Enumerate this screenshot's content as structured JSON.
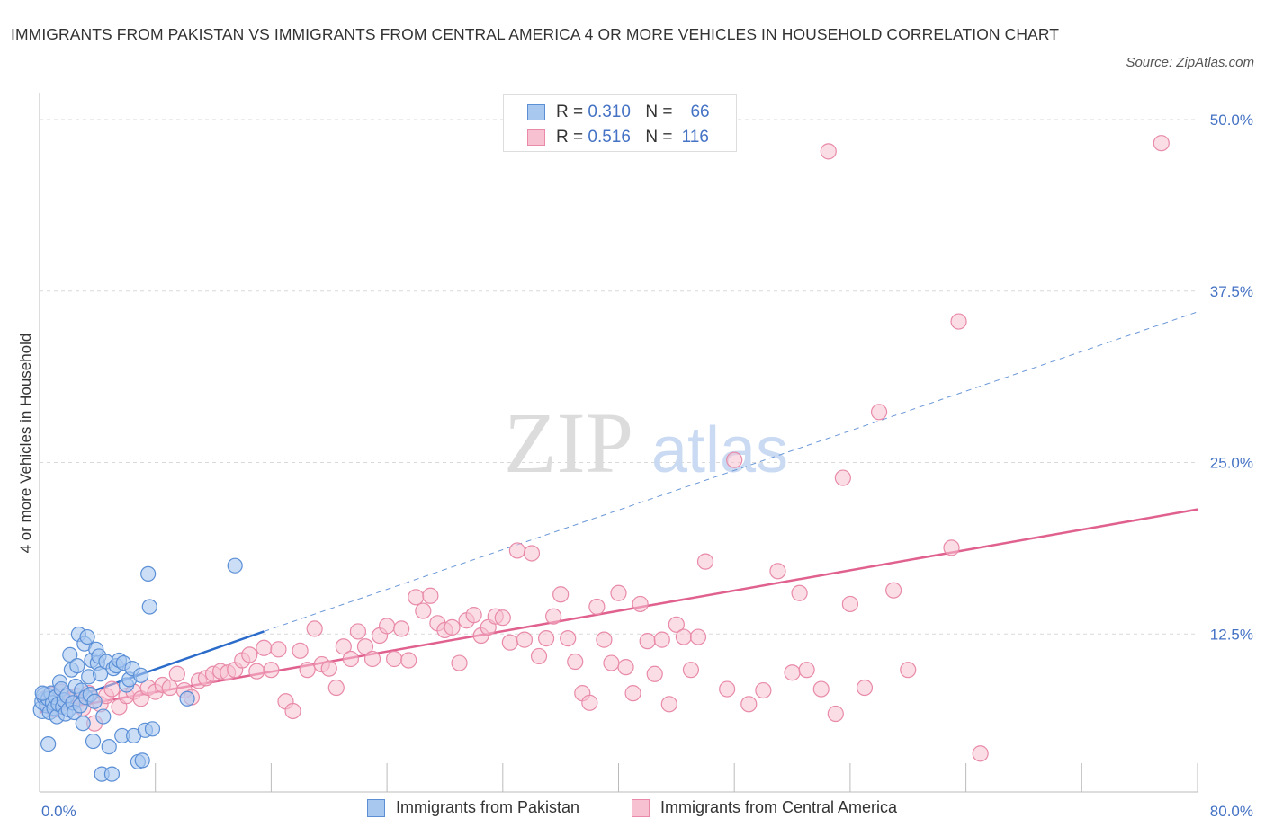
{
  "title": "IMMIGRANTS FROM PAKISTAN VS IMMIGRANTS FROM CENTRAL AMERICA 4 OR MORE VEHICLES IN HOUSEHOLD CORRELATION CHART",
  "source": "Source: ZipAtlas.com",
  "watermark": {
    "zip": "ZIP",
    "atlas": "atlas"
  },
  "legend": {
    "r_label": "R =",
    "n_label": "N =",
    "rows": [
      {
        "r": "0.310",
        "n": "66"
      },
      {
        "r": "0.516",
        "n": "116"
      }
    ]
  },
  "colors": {
    "pakistan_fill": "#a9c8f0",
    "pakistan_stroke": "#5b8fd6",
    "pakistan_line": "#2b6ccb",
    "central_fill": "#f7c1d2",
    "central_stroke": "#e88aa8",
    "central_line": "#e0608e",
    "tick_label": "#4472c4",
    "grid": "#d9d9d9"
  },
  "chart_data": {
    "type": "scatter",
    "title": "IMMIGRANTS FROM PAKISTAN VS IMMIGRANTS FROM CENTRAL AMERICA 4 OR MORE VEHICLES IN HOUSEHOLD CORRELATION CHART",
    "xlabel": "",
    "ylabel": "4 or more Vehicles in Household",
    "xlim": [
      0,
      80
    ],
    "ylim": [
      0,
      50
    ],
    "x_tick_labels": [
      "0.0%",
      "80.0%"
    ],
    "y_ticks": [
      12.5,
      25.0,
      37.5,
      50.0
    ],
    "y_tick_labels": [
      "12.5%",
      "25.0%",
      "37.5%",
      "50.0%"
    ],
    "grid": "horizontal dashed",
    "legend_placement": "top-center",
    "series": [
      {
        "name": "Immigrants from Pakistan",
        "r": 0.31,
        "n": 66,
        "trend": {
          "x1": 0,
          "y1": 6.0,
          "x2": 15.5,
          "y2": 11.7,
          "dashed_to": [
            80,
            35.0
          ]
        },
        "points": [
          [
            0.2,
            6.0
          ],
          [
            0.3,
            6.6
          ],
          [
            0.4,
            7.0
          ],
          [
            0.5,
            6.3
          ],
          [
            0.6,
            6.8
          ],
          [
            0.7,
            5.8
          ],
          [
            0.8,
            7.2
          ],
          [
            0.9,
            6.5
          ],
          [
            1.0,
            6.1
          ],
          [
            1.1,
            6.9
          ],
          [
            1.2,
            5.5
          ],
          [
            1.3,
            6.4
          ],
          [
            1.4,
            8.0
          ],
          [
            1.5,
            7.5
          ],
          [
            1.6,
            6.2
          ],
          [
            1.7,
            6.7
          ],
          [
            1.8,
            5.7
          ],
          [
            1.9,
            7.0
          ],
          [
            2.0,
            6.0
          ],
          [
            2.1,
            10.0
          ],
          [
            2.2,
            8.9
          ],
          [
            2.3,
            6.5
          ],
          [
            2.4,
            5.8
          ],
          [
            2.5,
            7.7
          ],
          [
            2.6,
            9.2
          ],
          [
            2.7,
            11.5
          ],
          [
            2.8,
            6.3
          ],
          [
            2.9,
            7.4
          ],
          [
            3.0,
            5.0
          ],
          [
            3.1,
            10.8
          ],
          [
            3.2,
            6.9
          ],
          [
            3.3,
            11.3
          ],
          [
            3.4,
            8.4
          ],
          [
            3.5,
            7.1
          ],
          [
            3.6,
            9.6
          ],
          [
            3.7,
            3.7
          ],
          [
            3.8,
            6.6
          ],
          [
            3.9,
            10.4
          ],
          [
            4.0,
            9.4
          ],
          [
            4.1,
            9.9
          ],
          [
            4.2,
            8.6
          ],
          [
            4.3,
            1.3
          ],
          [
            4.4,
            5.5
          ],
          [
            4.6,
            9.5
          ],
          [
            4.8,
            3.3
          ],
          [
            5.0,
            1.3
          ],
          [
            5.1,
            9.0
          ],
          [
            5.3,
            9.2
          ],
          [
            5.5,
            9.6
          ],
          [
            5.7,
            4.1
          ],
          [
            5.8,
            9.4
          ],
          [
            6.0,
            7.8
          ],
          [
            6.2,
            8.2
          ],
          [
            6.4,
            9.0
          ],
          [
            6.5,
            4.1
          ],
          [
            6.8,
            2.2
          ],
          [
            7.0,
            8.5
          ],
          [
            7.1,
            2.3
          ],
          [
            7.3,
            4.5
          ],
          [
            7.5,
            15.9
          ],
          [
            7.6,
            13.5
          ],
          [
            7.8,
            4.6
          ],
          [
            0.6,
            3.5
          ],
          [
            0.2,
            7.2
          ],
          [
            10.2,
            6.8
          ],
          [
            13.5,
            16.5
          ]
        ]
      },
      {
        "name": "Immigrants from Central America",
        "r": 0.516,
        "n": 116,
        "trend": {
          "x1": 0,
          "y1": 5.8,
          "x2": 80,
          "y2": 20.6
        },
        "points": [
          [
            0.4,
            6.8
          ],
          [
            0.6,
            6.3
          ],
          [
            0.8,
            7.1
          ],
          [
            1.0,
            6.0
          ],
          [
            1.2,
            6.6
          ],
          [
            1.5,
            7.3
          ],
          [
            1.8,
            6.5
          ],
          [
            2.2,
            6.7
          ],
          [
            2.6,
            7.0
          ],
          [
            3.0,
            6.1
          ],
          [
            3.4,
            7.2
          ],
          [
            3.8,
            5.0
          ],
          [
            4.2,
            6.4
          ],
          [
            4.6,
            7.0
          ],
          [
            5.0,
            7.5
          ],
          [
            5.5,
            6.2
          ],
          [
            6.0,
            7.0
          ],
          [
            6.5,
            7.3
          ],
          [
            7.0,
            6.8
          ],
          [
            7.5,
            7.6
          ],
          [
            8.0,
            7.3
          ],
          [
            8.5,
            7.8
          ],
          [
            9.0,
            7.6
          ],
          [
            9.5,
            8.6
          ],
          [
            10.0,
            7.4
          ],
          [
            10.5,
            6.9
          ],
          [
            11.0,
            8.1
          ],
          [
            11.5,
            8.3
          ],
          [
            12.0,
            8.6
          ],
          [
            12.5,
            8.8
          ],
          [
            13.0,
            8.7
          ],
          [
            13.5,
            8.9
          ],
          [
            14.0,
            9.6
          ],
          [
            14.5,
            10.0
          ],
          [
            15.0,
            8.8
          ],
          [
            15.5,
            10.5
          ],
          [
            16.0,
            8.9
          ],
          [
            16.5,
            10.4
          ],
          [
            17.0,
            6.6
          ],
          [
            17.5,
            5.9
          ],
          [
            18.0,
            10.3
          ],
          [
            18.5,
            8.9
          ],
          [
            19.0,
            11.9
          ],
          [
            19.5,
            9.3
          ],
          [
            20.0,
            9.0
          ],
          [
            20.5,
            7.6
          ],
          [
            21.0,
            10.6
          ],
          [
            21.5,
            9.7
          ],
          [
            22.0,
            11.7
          ],
          [
            22.5,
            10.6
          ],
          [
            23.0,
            9.7
          ],
          [
            23.5,
            11.4
          ],
          [
            24.0,
            12.1
          ],
          [
            24.5,
            9.7
          ],
          [
            25.0,
            11.9
          ],
          [
            25.5,
            9.6
          ],
          [
            26.0,
            14.2
          ],
          [
            26.5,
            13.2
          ],
          [
            27.0,
            14.3
          ],
          [
            27.5,
            12.3
          ],
          [
            28.0,
            11.8
          ],
          [
            28.5,
            12.0
          ],
          [
            29.0,
            9.4
          ],
          [
            29.5,
            12.5
          ],
          [
            30.0,
            12.9
          ],
          [
            30.5,
            11.4
          ],
          [
            31.0,
            12.0
          ],
          [
            31.5,
            12.8
          ],
          [
            32.0,
            12.7
          ],
          [
            32.5,
            10.9
          ],
          [
            33.0,
            17.6
          ],
          [
            33.5,
            11.1
          ],
          [
            34.0,
            17.4
          ],
          [
            34.5,
            9.9
          ],
          [
            35.0,
            11.2
          ],
          [
            35.5,
            12.8
          ],
          [
            36.0,
            14.4
          ],
          [
            36.5,
            11.2
          ],
          [
            37.0,
            9.5
          ],
          [
            37.5,
            7.2
          ],
          [
            38.0,
            6.5
          ],
          [
            38.5,
            13.5
          ],
          [
            39.0,
            11.1
          ],
          [
            39.5,
            9.4
          ],
          [
            40.0,
            14.5
          ],
          [
            40.5,
            9.1
          ],
          [
            41.0,
            7.2
          ],
          [
            41.5,
            13.7
          ],
          [
            42.0,
            11.0
          ],
          [
            42.5,
            8.6
          ],
          [
            43.0,
            11.1
          ],
          [
            43.5,
            6.4
          ],
          [
            44.0,
            12.2
          ],
          [
            44.5,
            11.3
          ],
          [
            45.0,
            8.9
          ],
          [
            45.5,
            11.3
          ],
          [
            46.0,
            16.8
          ],
          [
            47.5,
            7.5
          ],
          [
            48.0,
            24.2
          ],
          [
            49.0,
            6.4
          ],
          [
            50.0,
            7.4
          ],
          [
            51.0,
            16.1
          ],
          [
            52.0,
            8.7
          ],
          [
            52.5,
            14.5
          ],
          [
            53.0,
            8.9
          ],
          [
            54.0,
            7.5
          ],
          [
            54.5,
            46.7
          ],
          [
            55.0,
            5.7
          ],
          [
            55.5,
            22.9
          ],
          [
            56.0,
            13.7
          ],
          [
            57.0,
            7.6
          ],
          [
            58.0,
            27.7
          ],
          [
            59.0,
            14.7
          ],
          [
            60.0,
            8.9
          ],
          [
            63.0,
            17.8
          ],
          [
            63.5,
            34.3
          ],
          [
            65.0,
            2.8
          ],
          [
            77.5,
            47.3
          ]
        ]
      }
    ]
  },
  "bottom_legend": {
    "items": [
      {
        "label": "Immigrants from Pakistan"
      },
      {
        "label": "Immigrants from Central America"
      }
    ]
  }
}
